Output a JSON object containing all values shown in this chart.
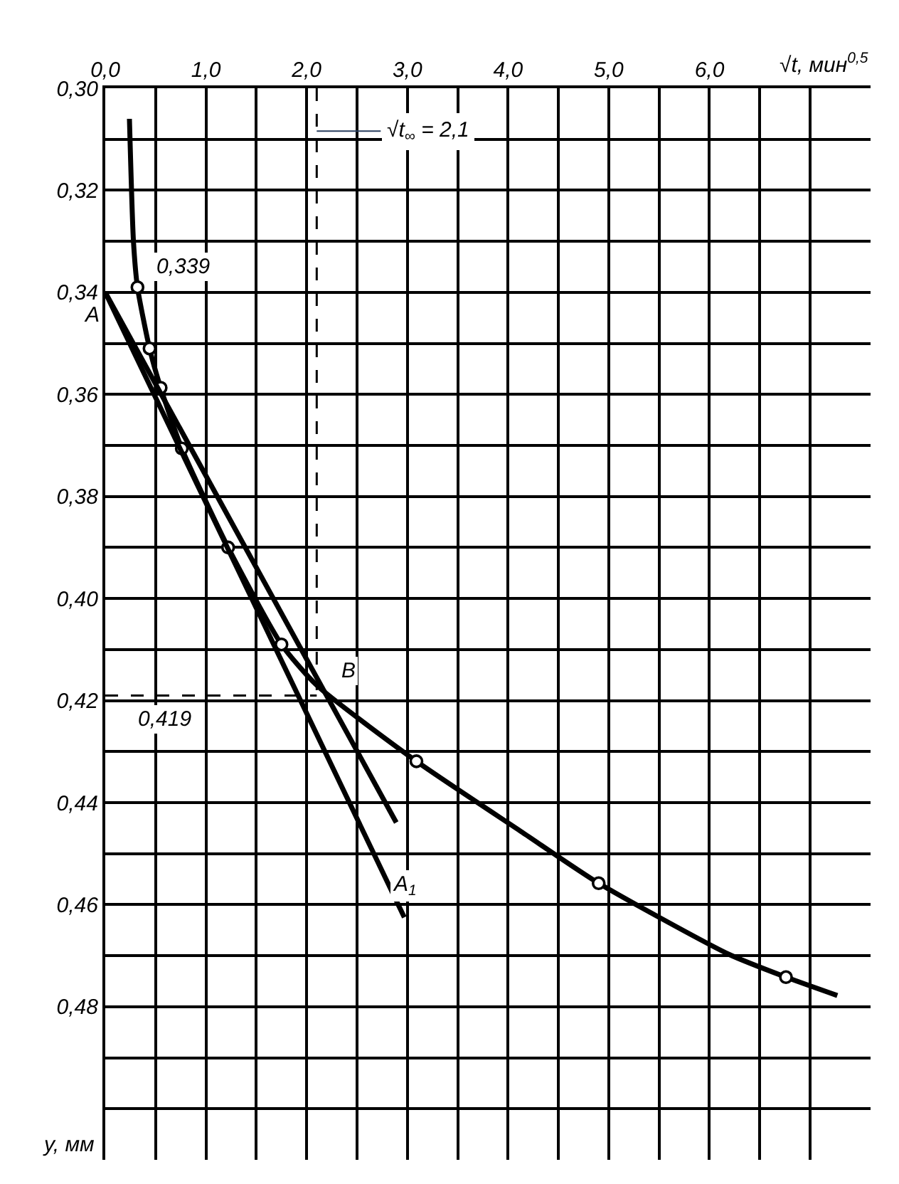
{
  "chart_data": {
    "type": "line",
    "xlabel": "√t, мин$^{0,5}$",
    "ylabel": "y, мм",
    "xlim": [
      0,
      7.6
    ],
    "ylim": [
      0.51,
      0.3
    ],
    "xticks": [
      {
        "value": 0,
        "label": "0,0"
      },
      {
        "value": 0.5,
        "label": null
      },
      {
        "value": 1,
        "label": "1,0"
      },
      {
        "value": 1.5,
        "label": null
      },
      {
        "value": 2,
        "label": "2,0"
      },
      {
        "value": 2.5,
        "label": null
      },
      {
        "value": 3,
        "label": "3,0"
      },
      {
        "value": 3.5,
        "label": null
      },
      {
        "value": 4,
        "label": "4,0"
      },
      {
        "value": 4.5,
        "label": null
      },
      {
        "value": 5,
        "label": "5,0"
      },
      {
        "value": 5.5,
        "label": null
      },
      {
        "value": 6,
        "label": "6,0"
      },
      {
        "value": 6.5,
        "label": null
      },
      {
        "value": 7,
        "label": null
      }
    ],
    "yticks": [
      {
        "value": 0.3,
        "label": "0,30"
      },
      {
        "value": 0.31,
        "label": null
      },
      {
        "value": 0.32,
        "label": "0,32"
      },
      {
        "value": 0.33,
        "label": null
      },
      {
        "value": 0.34,
        "label": "0,34"
      },
      {
        "value": 0.35,
        "label": null
      },
      {
        "value": 0.36,
        "label": "0,36"
      },
      {
        "value": 0.37,
        "label": null
      },
      {
        "value": 0.38,
        "label": "0,38"
      },
      {
        "value": 0.39,
        "label": null
      },
      {
        "value": 0.4,
        "label": "0,40"
      },
      {
        "value": 0.41,
        "label": null
      },
      {
        "value": 0.42,
        "label": "0,42"
      },
      {
        "value": 0.43,
        "label": null
      },
      {
        "value": 0.44,
        "label": "0,44"
      },
      {
        "value": 0.45,
        "label": null
      },
      {
        "value": 0.46,
        "label": "0,46"
      },
      {
        "value": 0.47,
        "label": null
      },
      {
        "value": 0.48,
        "label": "0,48"
      },
      {
        "value": 0.49,
        "label": null
      },
      {
        "value": 0.5,
        "label": null
      }
    ],
    "grid": true,
    "series": [
      {
        "color": "#000000",
        "marker": "none",
        "line_style": "solid",
        "x": [
          0.24,
          0.28,
          0.32,
          0.44,
          0.55,
          0.76,
          1.22,
          1.75,
          2.1,
          3.09,
          4.14,
          4.9,
          6.19,
          6.76,
          7.27
        ],
        "values": [
          0.306,
          0.33,
          0.339,
          0.351,
          0.3587,
          0.3706,
          0.39,
          0.409,
          0.417,
          0.4319,
          0.4458,
          0.4558,
          0.4697,
          0.4742,
          0.4778
        ]
      },
      {
        "type": "scatter",
        "color": "#000000",
        "marker": "circle",
        "x": [
          0.32,
          0.44,
          0.55,
          0.76,
          1.22,
          1.75,
          3.09,
          4.9,
          6.76
        ],
        "values": [
          0.339,
          0.351,
          0.3587,
          0.3706,
          0.39,
          0.409,
          0.4319,
          0.4558,
          0.4742
        ]
      },
      {
        "color": "#000000",
        "marker": "none",
        "line_style": "solid",
        "x": [
          0,
          2.97
        ],
        "values": [
          0.34,
          0.4625
        ]
      },
      {
        "color": "#000000",
        "marker": "none",
        "line_style": "solid",
        "x": [
          0,
          2.89
        ],
        "values": [
          0.34,
          0.4439
        ]
      }
    ],
    "ref_lines": [
      {
        "axis": "x",
        "value": 2.1,
        "label": "√t$_{∞}$ = 2,1",
        "color": "#000000",
        "line_style": "dashed"
      },
      {
        "axis": "y",
        "value": 0.419,
        "label": "0,419",
        "color": "#000000",
        "line_style": "dashed"
      }
    ],
    "annotations": [
      {
        "text": "A",
        "x": 0,
        "y": 0.34
      },
      {
        "text": "0,339",
        "x": 0.32,
        "y": 0.339
      },
      {
        "text": "B",
        "x": 2.1,
        "y": 0.417
      },
      {
        "text": "A$_{1}$",
        "x": 2.97,
        "y": 0.4625
      }
    ]
  }
}
